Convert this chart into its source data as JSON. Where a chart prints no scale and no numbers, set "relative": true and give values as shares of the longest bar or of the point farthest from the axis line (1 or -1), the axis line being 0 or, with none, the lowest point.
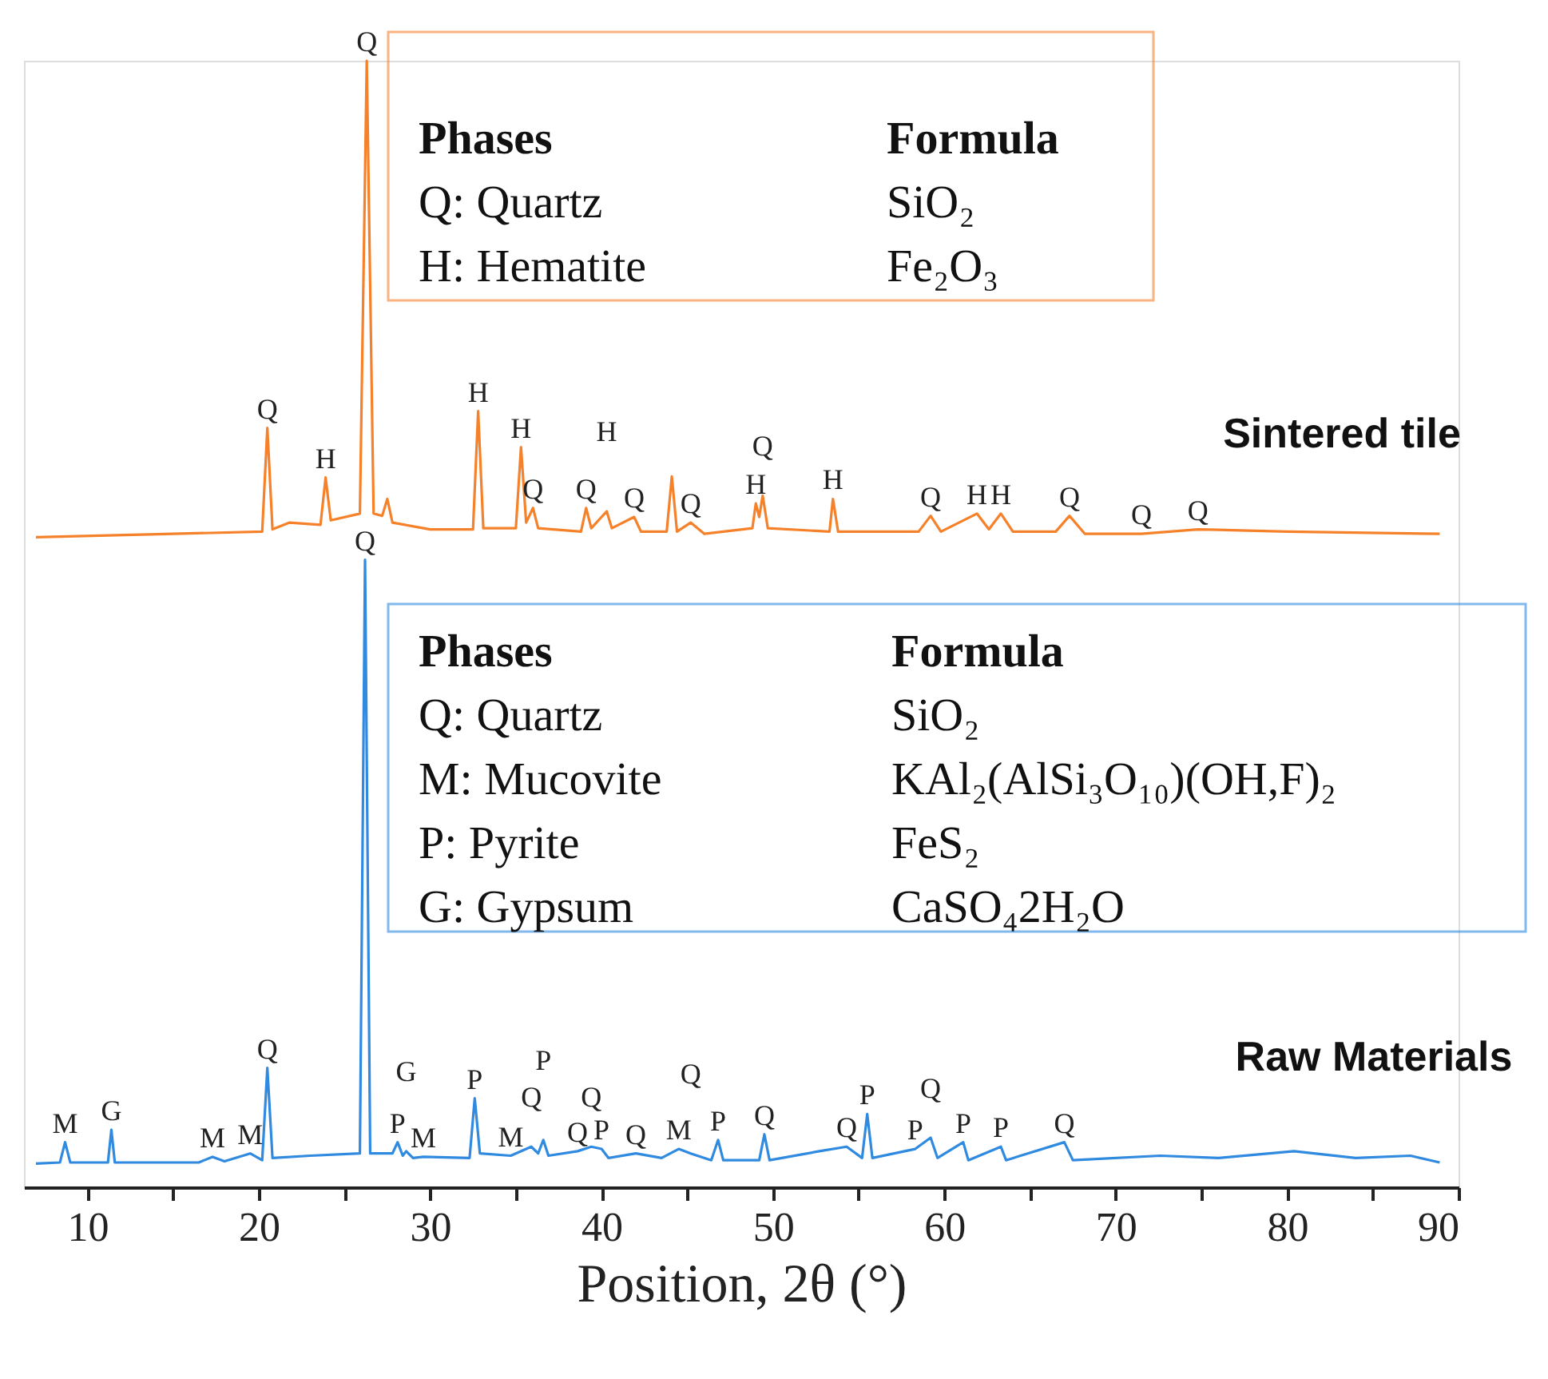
{
  "chart_data": {
    "type": "line",
    "xlabel": "Position, 2θ (°)",
    "relative": true,
    "xlim": [
      6.3,
      90
    ],
    "xticks": [
      10,
      {
        "value": 15,
        "label": null
      },
      20,
      {
        "value": 25,
        "label": null
      },
      30,
      {
        "value": 35,
        "label": null
      },
      40,
      {
        "value": 45,
        "label": null
      },
      50,
      {
        "value": 55,
        "label": null
      },
      60,
      {
        "value": 65,
        "label": null
      },
      70,
      {
        "value": 75,
        "label": null
      },
      80,
      {
        "value": 85,
        "label": null
      },
      90
    ],
    "grid": false,
    "marker": "none",
    "line_style": "solid",
    "series": [
      {
        "name": "Sintered tile",
        "color": "#f5822a",
        "x": [
          7.0,
          15,
          20.2,
          20.5,
          20.8,
          21.8,
          23.6,
          23.9,
          24.2,
          25.9,
          26.3,
          26.7,
          27.2,
          27.5,
          27.8,
          30,
          32.5,
          32.8,
          33.1,
          35.0,
          35.3,
          35.6,
          36.0,
          36.3,
          38.8,
          39.1,
          39.4,
          40.3,
          40.6,
          41.9,
          42.3,
          43.8,
          44.1,
          44.4,
          45.2,
          46,
          48.8,
          49.0,
          49.2,
          49.4,
          49.7,
          53.3,
          53.5,
          53.8,
          58.5,
          59.2,
          59.8,
          61.9,
          62.6,
          63.3,
          64.0,
          66.5,
          67.3,
          68.2,
          71.5,
          74.8,
          80,
          88.9
        ],
        "values": [
          0.577,
          0.58,
          0.582,
          0.674,
          0.584,
          0.59,
          0.588,
          0.63,
          0.592,
          0.598,
          1.0,
          0.598,
          0.596,
          0.611,
          0.59,
          0.584,
          0.584,
          0.689,
          0.585,
          0.585,
          0.657,
          0.59,
          0.603,
          0.585,
          0.582,
          0.603,
          0.585,
          0.6,
          0.585,
          0.595,
          0.582,
          0.582,
          0.631,
          0.582,
          0.59,
          0.58,
          0.585,
          0.607,
          0.595,
          0.614,
          0.585,
          0.582,
          0.611,
          0.582,
          0.582,
          0.596,
          0.582,
          0.598,
          0.584,
          0.598,
          0.582,
          0.582,
          0.596,
          0.58,
          0.58,
          0.584,
          0.582,
          0.58
        ]
      },
      {
        "name": "Raw Materials",
        "color": "#2f8ae0",
        "x": [
          7.0,
          8.4,
          8.7,
          9.0,
          11.2,
          11.4,
          11.6,
          16.5,
          17.3,
          18,
          19.5,
          20.2,
          20.5,
          20.8,
          23,
          25.9,
          26.2,
          26.5,
          27.8,
          28.1,
          28.4,
          28.6,
          29.0,
          29.6,
          32.3,
          32.6,
          32.9,
          34.7,
          35.9,
          36.3,
          36.6,
          36.9,
          38.6,
          39.4,
          40.0,
          40.4,
          42.0,
          43.5,
          44.5,
          45.2,
          46.4,
          46.8,
          47.1,
          49.2,
          49.5,
          49.8,
          52.7,
          54.3,
          55.2,
          55.5,
          55.8,
          58.3,
          59.2,
          59.6,
          61.1,
          61.4,
          63.3,
          63.6,
          67.0,
          67.5,
          72.6,
          76,
          80.4,
          84,
          87.2,
          88.9
        ],
        "values": [
          0.021,
          0.022,
          0.04,
          0.022,
          0.022,
          0.051,
          0.022,
          0.022,
          0.027,
          0.023,
          0.03,
          0.024,
          0.106,
          0.026,
          0.028,
          0.03,
          0.557,
          0.03,
          0.03,
          0.04,
          0.028,
          0.032,
          0.026,
          0.027,
          0.026,
          0.079,
          0.03,
          0.028,
          0.036,
          0.03,
          0.042,
          0.028,
          0.032,
          0.036,
          0.034,
          0.026,
          0.03,
          0.026,
          0.034,
          0.03,
          0.024,
          0.042,
          0.024,
          0.024,
          0.047,
          0.024,
          0.032,
          0.036,
          0.026,
          0.065,
          0.026,
          0.034,
          0.044,
          0.026,
          0.04,
          0.024,
          0.036,
          0.024,
          0.04,
          0.024,
          0.028,
          0.026,
          0.032,
          0.026,
          0.028,
          0.022
        ]
      }
    ],
    "annotations": [
      "Phases",
      "Formula",
      "Q: Quartz",
      "SiO₂",
      "H: Hematite",
      "Fe₂O₃",
      "Phases",
      "Formula",
      "Q: Quartz",
      "SiO₂",
      "M: Mucovite",
      "KAl₂(AlSi₃O₁₀)(OH,F)₂",
      "P: Pyrite",
      "FeS₂",
      "G: Gypsum",
      "CaSO₄2H₂O",
      {
        "text": "Q",
        "x": 20.5,
        "y": 0.674
      },
      {
        "text": "H",
        "x": 23.9,
        "y": 0.63
      },
      {
        "text": "Q",
        "x": 26.3,
        "y": 1.0
      },
      {
        "text": "H",
        "x": 32.8,
        "y": 0.689
      },
      {
        "text": "H",
        "x": 35.3,
        "y": 0.657
      },
      {
        "text": "Q",
        "x": 36.0,
        "y": 0.603
      },
      {
        "text": "Q",
        "x": 39.1,
        "y": 0.603
      },
      {
        "text": "H",
        "x": 40.3,
        "y": 0.6
      },
      {
        "text": "Q",
        "x": 41.9,
        "y": 0.595
      },
      {
        "text": "Q",
        "x": 45.2,
        "y": 0.59
      },
      {
        "text": "H",
        "x": 49.0,
        "y": 0.607
      },
      {
        "text": "Q",
        "x": 49.4,
        "y": 0.614
      },
      {
        "text": "H",
        "x": 53.5,
        "y": 0.611
      },
      {
        "text": "Q",
        "x": 59.2,
        "y": 0.596
      },
      {
        "text": "H",
        "x": 61.9,
        "y": 0.598
      },
      {
        "text": "H",
        "x": 63.3,
        "y": 0.598
      },
      {
        "text": "Q",
        "x": 67.3,
        "y": 0.596
      },
      {
        "text": "Q",
        "x": 71.5,
        "y": 0.58
      },
      {
        "text": "Q",
        "x": 74.8,
        "y": 0.584
      },
      {
        "text": "M",
        "x": 8.7,
        "y": 0.04
      },
      {
        "text": "G",
        "x": 11.4,
        "y": 0.051
      },
      {
        "text": "M",
        "x": 17.3,
        "y": 0.027
      },
      {
        "text": "M",
        "x": 19.5,
        "y": 0.03
      },
      {
        "text": "Q",
        "x": 20.5,
        "y": 0.106
      },
      {
        "text": "Q",
        "x": 26.2,
        "y": 0.557
      },
      {
        "text": "P",
        "x": 28.1,
        "y": 0.04
      },
      {
        "text": "G",
        "x": 28.6,
        "y": 0.032
      },
      {
        "text": "M",
        "x": 29.6,
        "y": 0.027
      },
      {
        "text": "P",
        "x": 32.6,
        "y": 0.079
      },
      {
        "text": "M",
        "x": 34.7,
        "y": 0.028
      },
      {
        "text": "Q",
        "x": 35.9,
        "y": 0.036
      },
      {
        "text": "P",
        "x": 36.6,
        "y": 0.042
      },
      {
        "text": "Q",
        "x": 38.6,
        "y": 0.032
      },
      {
        "text": "Q",
        "x": 39.4,
        "y": 0.036
      },
      {
        "text": "P",
        "x": 40.0,
        "y": 0.034
      },
      {
        "text": "Q",
        "x": 42.0,
        "y": 0.03
      },
      {
        "text": "M",
        "x": 44.5,
        "y": 0.034
      },
      {
        "text": "Q",
        "x": 45.2,
        "y": 0.03
      },
      {
        "text": "P",
        "x": 46.8,
        "y": 0.042
      },
      {
        "text": "Q",
        "x": 49.5,
        "y": 0.047
      },
      {
        "text": "Q",
        "x": 54.3,
        "y": 0.036
      },
      {
        "text": "P",
        "x": 55.5,
        "y": 0.065
      },
      {
        "text": "P",
        "x": 58.3,
        "y": 0.034
      },
      {
        "text": "Q",
        "x": 59.2,
        "y": 0.044
      },
      {
        "text": "P",
        "x": 61.1,
        "y": 0.04
      },
      {
        "text": "P",
        "x": 63.3,
        "y": 0.036
      },
      {
        "text": "Q",
        "x": 67.0,
        "y": 0.04
      }
    ]
  }
}
